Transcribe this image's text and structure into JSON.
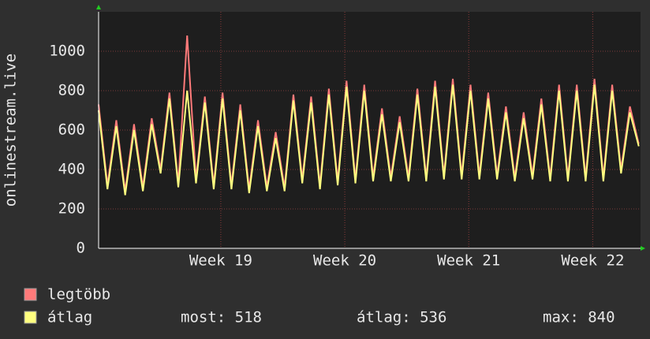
{
  "chart_data": {
    "type": "line",
    "y_label": "onlinestream.live",
    "x": [
      0,
      0.5,
      1,
      1.5,
      2,
      2.5,
      3,
      3.5,
      4,
      4.5,
      5,
      5.5,
      6,
      6.5,
      7,
      7.5,
      8,
      8.5,
      9,
      9.5,
      10,
      10.5,
      11,
      11.5,
      12,
      12.5,
      13,
      13.5,
      14,
      14.5,
      15,
      15.5,
      16,
      16.5,
      17,
      17.5,
      18,
      18.5,
      19,
      19.5,
      20,
      20.5,
      21,
      21.5,
      22,
      22.5,
      23,
      23.5,
      24,
      24.5,
      25,
      25.5,
      26,
      26.5,
      27,
      27.5,
      28,
      28.5,
      29,
      29.5,
      30,
      30.5
    ],
    "xlim": [
      0,
      30.6
    ],
    "xticks": [
      {
        "value": 6.9,
        "label": "Week 19"
      },
      {
        "value": 13.9,
        "label": "Week 20"
      },
      {
        "value": 20.9,
        "label": "Week 21"
      },
      {
        "value": 27.9,
        "label": "Week 22"
      }
    ],
    "ylim": [
      0,
      1200
    ],
    "yticks": [
      0,
      200,
      400,
      600,
      800,
      1000
    ],
    "grid": true,
    "series": [
      {
        "name": "legtöbb",
        "color": "#ff7a7a",
        "values": [
          730,
          320,
          650,
          290,
          630,
          310,
          660,
          400,
          790,
          330,
          1080,
          350,
          770,
          320,
          790,
          320,
          730,
          300,
          650,
          310,
          590,
          310,
          780,
          350,
          770,
          320,
          810,
          340,
          850,
          350,
          830,
          360,
          710,
          360,
          670,
          360,
          810,
          360,
          850,
          370,
          860,
          370,
          830,
          370,
          790,
          370,
          720,
          360,
          690,
          370,
          760,
          360,
          830,
          360,
          830,
          360,
          860,
          360,
          830,
          400,
          720,
          530
        ]
      },
      {
        "name": "átlag",
        "color": "#ffff80",
        "values": [
          700,
          300,
          620,
          270,
          600,
          290,
          630,
          380,
          760,
          310,
          800,
          330,
          740,
          300,
          760,
          300,
          700,
          280,
          620,
          290,
          560,
          290,
          750,
          330,
          740,
          300,
          780,
          320,
          820,
          330,
          800,
          340,
          680,
          340,
          640,
          340,
          780,
          340,
          820,
          350,
          830,
          350,
          800,
          350,
          760,
          350,
          690,
          340,
          660,
          350,
          730,
          340,
          800,
          340,
          800,
          340,
          830,
          340,
          800,
          380,
          690,
          518
        ]
      }
    ],
    "legend": {
      "most_label": "most: 518",
      "avg_label": "átlag: 536",
      "max_label": "max: 840"
    }
  }
}
